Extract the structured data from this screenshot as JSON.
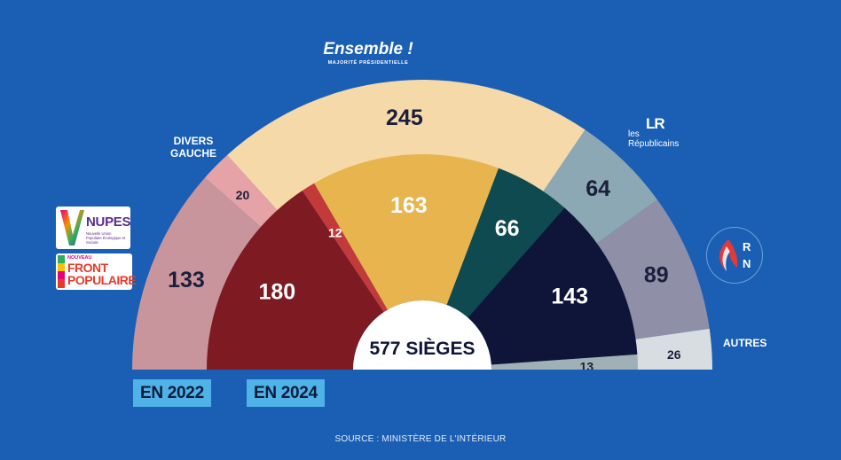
{
  "colors": {
    "background": "#1a5fb4",
    "tag": "#4fb3e8"
  },
  "chart_data": [
    {
      "type": "pie",
      "subtype": "hemicycle",
      "title": "",
      "tag": "EN 2022",
      "total": 577,
      "slices": [
        {
          "label": "NUPES",
          "value": 133,
          "color": "#c8959c"
        },
        {
          "label": "DIVERS GAUCHE",
          "value": 20,
          "color": "#e5a3a8"
        },
        {
          "label": "Ensemble !",
          "value": 245,
          "color": "#f5d9a8"
        },
        {
          "label": "les Républicains",
          "value": 64,
          "color": "#8ba8b4"
        },
        {
          "label": "RN",
          "value": 89,
          "color": "#8f8fa8"
        },
        {
          "label": "AUTRES",
          "value": 26,
          "color": "#d8dde2"
        }
      ]
    },
    {
      "type": "pie",
      "subtype": "hemicycle",
      "title": "",
      "tag": "EN 2024",
      "total": 577,
      "center_label": "577 SIÈGES",
      "slices": [
        {
          "label": "NOUVEAU FRONT POPULAIRE",
          "value": 180,
          "color": "#7d1a22"
        },
        {
          "label": "DIVERS GAUCHE",
          "value": 12,
          "color": "#c23a3a"
        },
        {
          "label": "Ensemble !",
          "value": 163,
          "color": "#e8b44e"
        },
        {
          "label": "les Républicains",
          "value": 66,
          "color": "#0e4a50"
        },
        {
          "label": "RN",
          "value": 143,
          "color": "#0f1538"
        },
        {
          "label": "AUTRES",
          "value": 13,
          "color": "#9fb0b6"
        }
      ]
    }
  ],
  "party_labels": {
    "ensemble": "Ensemble !",
    "ensemble_sub": "MAJORITÉ PRÉSIDENTIELLE",
    "divers_gauche_1": "DIVERS",
    "divers_gauche_2": "GAUCHE",
    "lr_les": "les",
    "lr_mark": "LR",
    "lr_name": "Républicains",
    "rn_mark": "RN",
    "autres": "AUTRES",
    "nupes": "NUPES",
    "nupes_sub": "Nouvelle Union Populaire Écologique et Sociale",
    "nfp_top": "NOUVEAU",
    "nfp_1": "FRONT",
    "nfp_2": "POPULAIRE"
  },
  "footer": {
    "source": "SOURCE : MINISTÈRE DE L'INTÉRIEUR"
  }
}
